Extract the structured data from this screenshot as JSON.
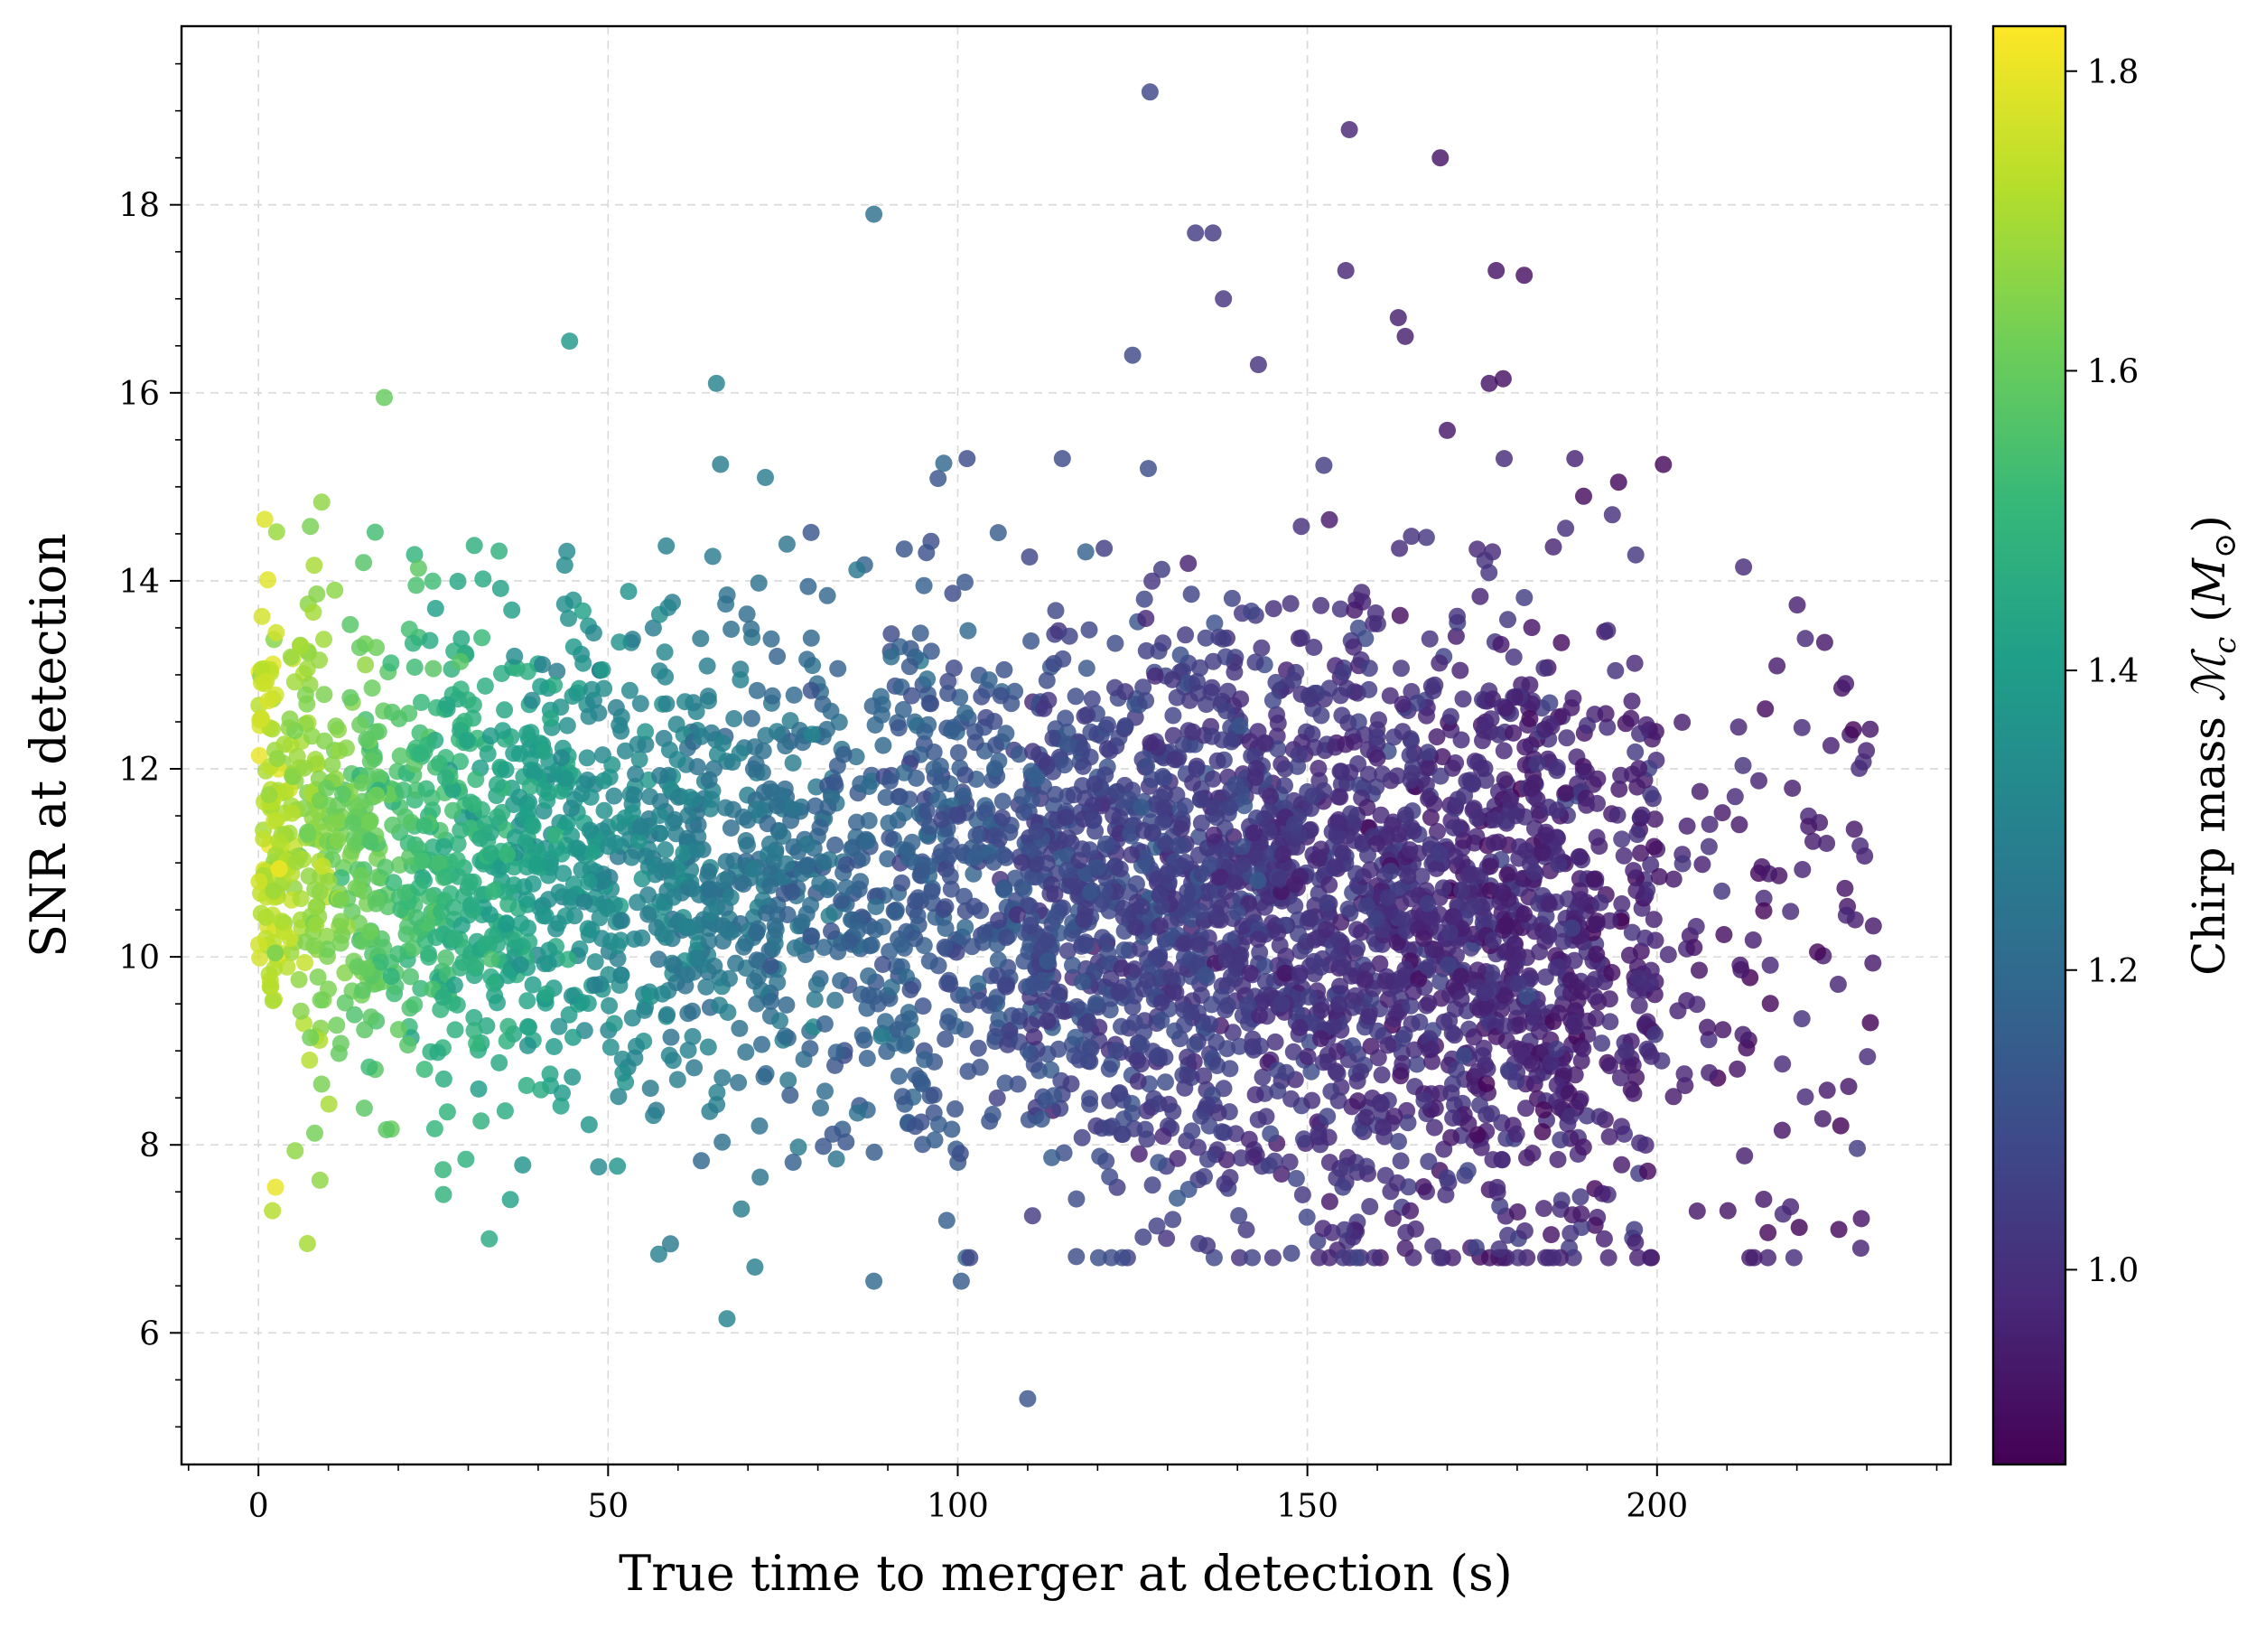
{
  "chart_data": {
    "type": "scatter",
    "title": "",
    "xlabel": "True time to merger at detection (s)",
    "ylabel": "SNR at detection",
    "xlim": [
      -11,
      242
    ],
    "ylim": [
      4.6,
      19.9
    ],
    "xticks": [
      0,
      50,
      100,
      150,
      200
    ],
    "yticks": [
      6,
      8,
      10,
      12,
      14,
      16,
      18
    ],
    "grid": true,
    "legend": "none",
    "colorbar": {
      "label_prefix": "Chirp mass ",
      "label_symbol": "ℳ",
      "label_subscript": "c",
      "label_unit_open": " (",
      "label_unit_symbol": "M",
      "label_unit_subscript": "⊙",
      "label_unit_close": ")",
      "colormap": "viridis",
      "range": [
        0.87,
        1.83
      ],
      "ticks": [
        1.0,
        1.2,
        1.4,
        1.6,
        1.8
      ]
    },
    "colormap_stops": [
      "#440154",
      "#482878",
      "#3e4989",
      "#31688e",
      "#26828e",
      "#1f9e89",
      "#35b779",
      "#6ece58",
      "#b5de2b",
      "#fde725"
    ],
    "approx_point_count": 4500,
    "notable_points": [
      {
        "x": 127.5,
        "y": 19.2,
        "c": 1.07
      },
      {
        "x": 156,
        "y": 18.8,
        "c": 0.97
      },
      {
        "x": 169,
        "y": 18.5,
        "c": 0.92
      },
      {
        "x": 88,
        "y": 17.9,
        "c": 1.22
      },
      {
        "x": 134,
        "y": 17.7,
        "c": 1.04
      },
      {
        "x": 136.5,
        "y": 17.7,
        "c": 1.03
      },
      {
        "x": 155.5,
        "y": 17.3,
        "c": 0.97
      },
      {
        "x": 177,
        "y": 17.3,
        "c": 0.92
      },
      {
        "x": 181,
        "y": 17.25,
        "c": 0.91
      },
      {
        "x": 138,
        "y": 17.0,
        "c": 1.02
      },
      {
        "x": 163,
        "y": 16.8,
        "c": 0.95
      },
      {
        "x": 44.5,
        "y": 16.55,
        "c": 1.38
      },
      {
        "x": 164,
        "y": 16.6,
        "c": 0.95
      },
      {
        "x": 125,
        "y": 16.4,
        "c": 1.08
      },
      {
        "x": 143,
        "y": 16.3,
        "c": 1.01
      },
      {
        "x": 65.5,
        "y": 16.1,
        "c": 1.3
      },
      {
        "x": 176,
        "y": 16.1,
        "c": 0.92
      },
      {
        "x": 178,
        "y": 16.15,
        "c": 0.91
      },
      {
        "x": 18,
        "y": 15.95,
        "c": 1.6
      },
      {
        "x": 170,
        "y": 15.6,
        "c": 0.93
      },
      {
        "x": 98,
        "y": 15.25,
        "c": 1.19
      },
      {
        "x": 72.5,
        "y": 15.1,
        "c": 1.27
      },
      {
        "x": 194.5,
        "y": 15.05,
        "c": 0.89
      },
      {
        "x": 189.5,
        "y": 14.9,
        "c": 0.9
      },
      {
        "x": 88,
        "y": 6.55,
        "c": 1.2
      },
      {
        "x": 100.5,
        "y": 6.55,
        "c": 1.15
      },
      {
        "x": 67,
        "y": 6.15,
        "c": 1.3
      },
      {
        "x": 134.5,
        "y": 6.95,
        "c": 1.04
      },
      {
        "x": 164,
        "y": 6.9,
        "c": 0.95
      },
      {
        "x": 110,
        "y": 5.3,
        "c": 1.12
      },
      {
        "x": 226,
        "y": 7.1,
        "c": 0.89
      },
      {
        "x": 230.5,
        "y": 9.3,
        "c": 0.88
      },
      {
        "x": 2,
        "y": 7.3,
        "c": 1.72
      },
      {
        "x": 7,
        "y": 6.95,
        "c": 1.7
      },
      {
        "x": 33,
        "y": 7.0,
        "c": 1.45
      },
      {
        "x": 71,
        "y": 6.7,
        "c": 1.28
      }
    ]
  }
}
